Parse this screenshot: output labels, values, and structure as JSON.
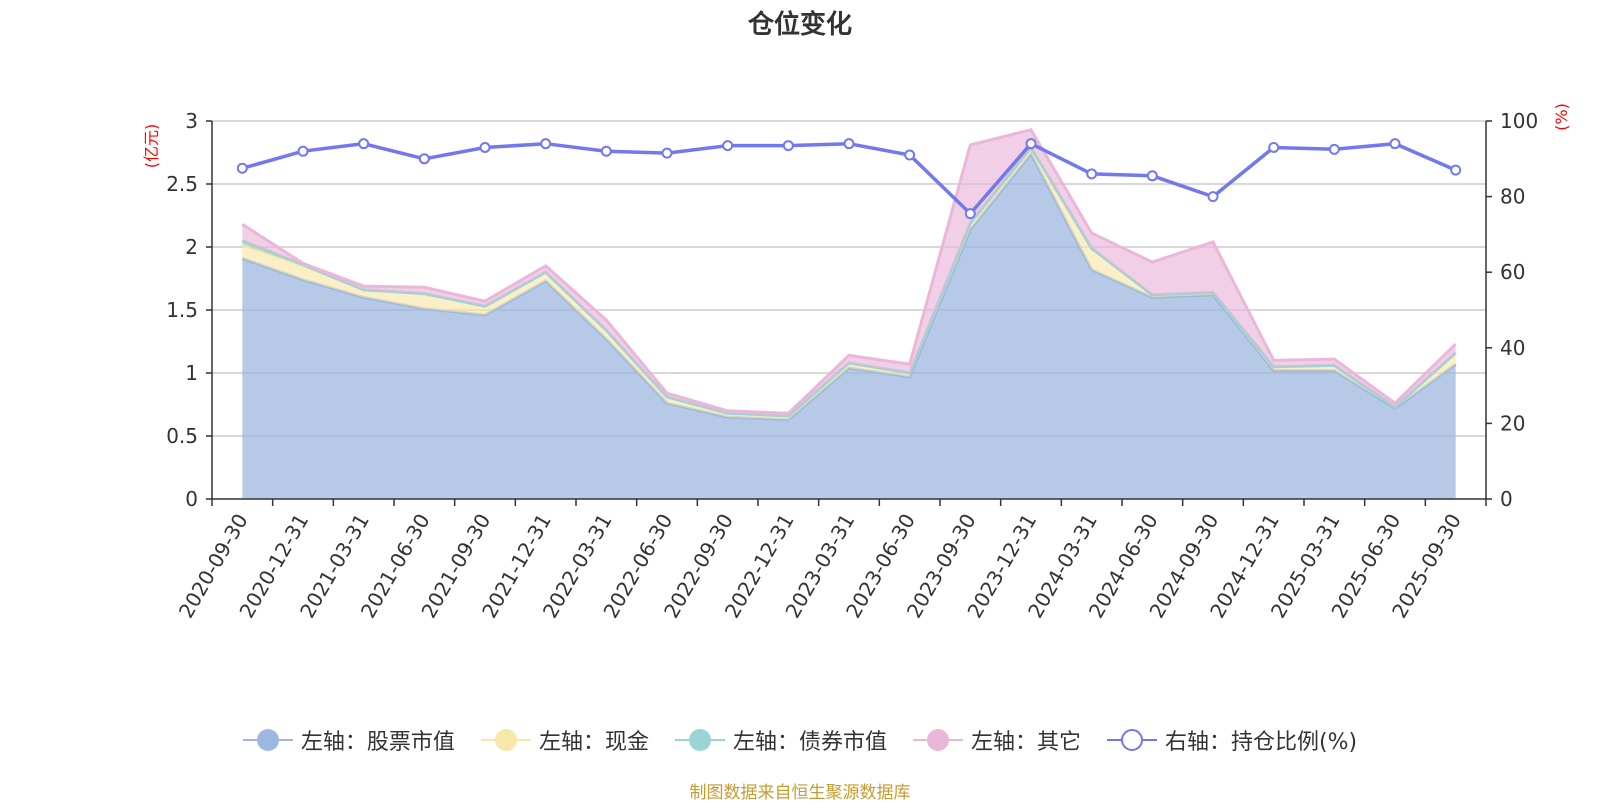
{
  "chart_data": {
    "type": "area",
    "title": "仓位变化",
    "left_axis_unit": "(亿元)",
    "right_axis_unit": "(%)",
    "ylim_left": [
      0,
      3
    ],
    "ylim_right": [
      0,
      100
    ],
    "left_ticks": [
      "0",
      "0.5",
      "1",
      "1.5",
      "2",
      "2.5",
      "3"
    ],
    "right_ticks": [
      "0",
      "20",
      "40",
      "60",
      "80",
      "100"
    ],
    "categories": [
      "2020-09-30",
      "2020-12-31",
      "2021-03-31",
      "2021-06-30",
      "2021-09-30",
      "2021-12-31",
      "2022-03-31",
      "2022-06-30",
      "2022-09-30",
      "2022-12-31",
      "2023-03-31",
      "2023-06-30",
      "2023-09-30",
      "2023-12-31",
      "2024-03-31",
      "2024-06-30",
      "2024-09-30",
      "2024-12-31",
      "2025-03-31",
      "2025-06-30",
      "2025-09-30"
    ],
    "stacked_series": [
      {
        "name": "左轴：股票市值",
        "color": "#9db8e0",
        "values": [
          1.91,
          1.74,
          1.6,
          1.51,
          1.46,
          1.73,
          1.27,
          0.76,
          0.65,
          0.63,
          1.04,
          0.97,
          2.14,
          2.74,
          1.82,
          1.6,
          1.62,
          1.02,
          1.02,
          0.72,
          1.07
        ]
      },
      {
        "name": "左轴：现金",
        "color": "#f8e7a8",
        "values": [
          0.11,
          0.11,
          0.06,
          0.12,
          0.07,
          0.07,
          0.07,
          0.05,
          0.03,
          0.03,
          0.04,
          0.03,
          0.05,
          0.05,
          0.17,
          0.02,
          0.02,
          0.03,
          0.04,
          0.01,
          0.09
        ]
      },
      {
        "name": "左轴：债券市值",
        "color": "#9bd4d4",
        "values": [
          0.03,
          0.01,
          0,
          0,
          0,
          0,
          0,
          0,
          0,
          0,
          0,
          0,
          0,
          0,
          0,
          0,
          0,
          0,
          0,
          0,
          0
        ]
      },
      {
        "name": "左轴：其它",
        "color": "#eab7da",
        "values": [
          0.13,
          0.01,
          0.03,
          0.05,
          0.04,
          0.05,
          0.08,
          0.03,
          0.02,
          0.02,
          0.06,
          0.07,
          0.62,
          0.14,
          0.12,
          0.26,
          0.4,
          0.05,
          0.05,
          0.03,
          0.07
        ]
      }
    ],
    "line_series": {
      "name": "右轴：持仓比例(%)",
      "color": "#7278ee",
      "values": [
        87.5,
        92,
        94,
        90,
        93,
        94,
        92,
        91.5,
        93.5,
        93.5,
        94,
        91,
        75.5,
        94,
        86,
        85.5,
        80,
        93,
        92.5,
        94,
        87
      ]
    },
    "legend_position": "bottom",
    "grid": true
  },
  "source_note": "制图数据来自恒生聚源数据库"
}
